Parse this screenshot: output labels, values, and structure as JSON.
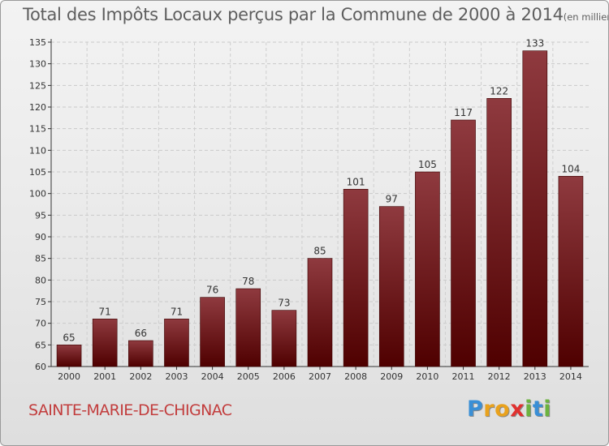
{
  "title": "Total des Impôts Locaux perçus par la Commune de 2000 à 2014",
  "title_unit": "(en milliers d'€)",
  "commune": "SAINTE-MARIE-DE-CHIGNAC",
  "logo": {
    "letters": [
      "P",
      "r",
      "o",
      "x",
      "i",
      "t",
      "i"
    ],
    "colors": [
      "#3a8fd6",
      "#e9a21d",
      "#e9a21d",
      "#e0312f",
      "#6cb33f",
      "#3a8fd6",
      "#6cb33f"
    ]
  },
  "colors": {
    "bar_top": "#8f3a3f",
    "bar_bottom": "#4f0000",
    "commune_text": "#c23d3d"
  },
  "chart_data": {
    "type": "bar",
    "title": "Total des Impôts Locaux perçus par la Commune de 2000 à 2014",
    "xlabel": "",
    "ylabel": "en milliers d'€",
    "categories": [
      "2000",
      "2001",
      "2002",
      "2003",
      "2004",
      "2005",
      "2006",
      "2007",
      "2008",
      "2009",
      "2010",
      "2011",
      "2012",
      "2013",
      "2014"
    ],
    "values": [
      65,
      71,
      66,
      71,
      76,
      78,
      73,
      85,
      101,
      97,
      105,
      117,
      122,
      133,
      104
    ],
    "ylim": [
      60,
      135
    ],
    "yticks": [
      60,
      65,
      70,
      75,
      80,
      85,
      90,
      95,
      100,
      105,
      110,
      115,
      120,
      125,
      130,
      135
    ],
    "grid": true
  }
}
